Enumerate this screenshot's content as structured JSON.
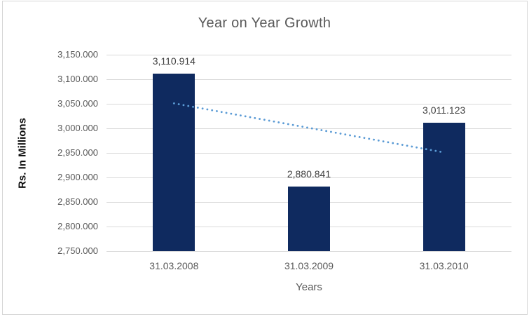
{
  "chart_data": {
    "type": "bar",
    "title": "Year on Year Growth",
    "xlabel": "Years",
    "ylabel": "Rs. In Millions",
    "categories": [
      "31.03.2008",
      "31.03.2009",
      "31.03.2010"
    ],
    "values": [
      3110.914,
      2880.841,
      3011.123
    ],
    "value_labels": [
      "3,110.914",
      "2,880.841",
      "3,011.123"
    ],
    "ylim": [
      2750,
      3150
    ],
    "ytick_values": [
      2750,
      2800,
      2850,
      2900,
      2950,
      3000,
      3050,
      3100,
      3150
    ],
    "ytick_labels": [
      "2,750.000",
      "2,800.000",
      "2,850.000",
      "2,900.000",
      "2,950.000",
      "3,000.000",
      "3,050.000",
      "3,100.000",
      "3,150.000"
    ],
    "grid": true,
    "legend": "none",
    "trendline": {
      "type": "linear",
      "style": "dotted",
      "start_value": 3050.9,
      "end_value": 2951.0,
      "color": "#5b9bd5"
    },
    "colors": {
      "bar": "#0f2a5f",
      "title_text": "#595959",
      "axis_text": "#595959",
      "value_label_text": "#404040",
      "gridline": "#d9d9d9",
      "border": "#d6d6d6",
      "background": "#ffffff"
    }
  }
}
